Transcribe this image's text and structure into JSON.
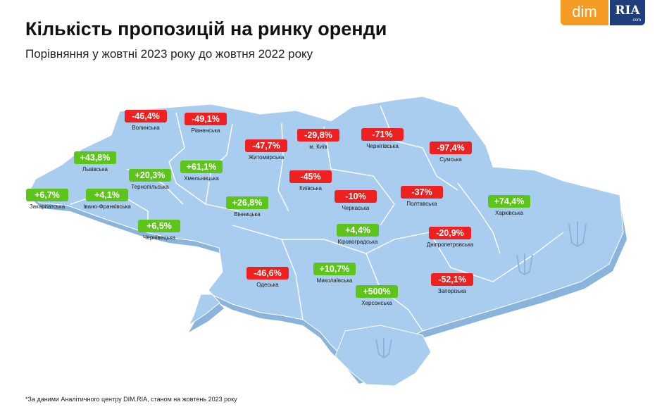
{
  "header": {
    "title": "Кількість пропозицій на ринку оренди",
    "subtitle": "Порівняння у жовтні 2023 року до жовтня 2022 року"
  },
  "logo": {
    "dim": "dim",
    "ria": "RIA",
    "com": ".com"
  },
  "footnote": "*За даними Аналітичного центру DIM.RIA, станом на жовтень 2023 року",
  "colors": {
    "up": "#5cc41a",
    "down": "#ef2020",
    "map_fill": "#a9cdef",
    "map_side": "#8bb4dc",
    "logo_dim": "#f39b23",
    "logo_ria": "#1f3f7a"
  },
  "regions": [
    {
      "name": "Волинська",
      "value": "-46,4%",
      "trend": "down"
    },
    {
      "name": "Рівненська",
      "value": "-49,1%",
      "trend": "down"
    },
    {
      "name": "м. Київ",
      "value": "-29,8%",
      "trend": "down"
    },
    {
      "name": "Чернігівська",
      "value": "-71%",
      "trend": "down"
    },
    {
      "name": "Сумська",
      "value": "-97,4%",
      "trend": "down"
    },
    {
      "name": "Житомирська",
      "value": "-47,7%",
      "trend": "down"
    },
    {
      "name": "Львівська",
      "value": "+43,8%",
      "trend": "up"
    },
    {
      "name": "Хмельницька",
      "value": "+61,1%",
      "trend": "up"
    },
    {
      "name": "Тернопільська",
      "value": "+20,3%",
      "trend": "up"
    },
    {
      "name": "Київська",
      "value": "-45%",
      "trend": "down"
    },
    {
      "name": "Закарпатська",
      "value": "+6,7%",
      "trend": "up"
    },
    {
      "name": "Івано-Франківська",
      "value": "+4,1%",
      "trend": "up"
    },
    {
      "name": "Черкаська",
      "value": "-10%",
      "trend": "down"
    },
    {
      "name": "Полтавська",
      "value": "-37%",
      "trend": "down"
    },
    {
      "name": "Харківська",
      "value": "+74,4%",
      "trend": "up"
    },
    {
      "name": "Вінницька",
      "value": "+26,8%",
      "trend": "up"
    },
    {
      "name": "Чернівецька",
      "value": "+6,5%",
      "trend": "up"
    },
    {
      "name": "Кіровоградська",
      "value": "+4,4%",
      "trend": "up"
    },
    {
      "name": "Дніпропетровська",
      "value": "-20,9%",
      "trend": "down"
    },
    {
      "name": "Одеська",
      "value": "-46,6%",
      "trend": "down"
    },
    {
      "name": "Миколаївська",
      "value": "+10,7%",
      "trend": "up"
    },
    {
      "name": "Херсонська",
      "value": "+500%",
      "trend": "up"
    },
    {
      "name": "Запорізька",
      "value": "-52,1%",
      "trend": "down"
    }
  ]
}
